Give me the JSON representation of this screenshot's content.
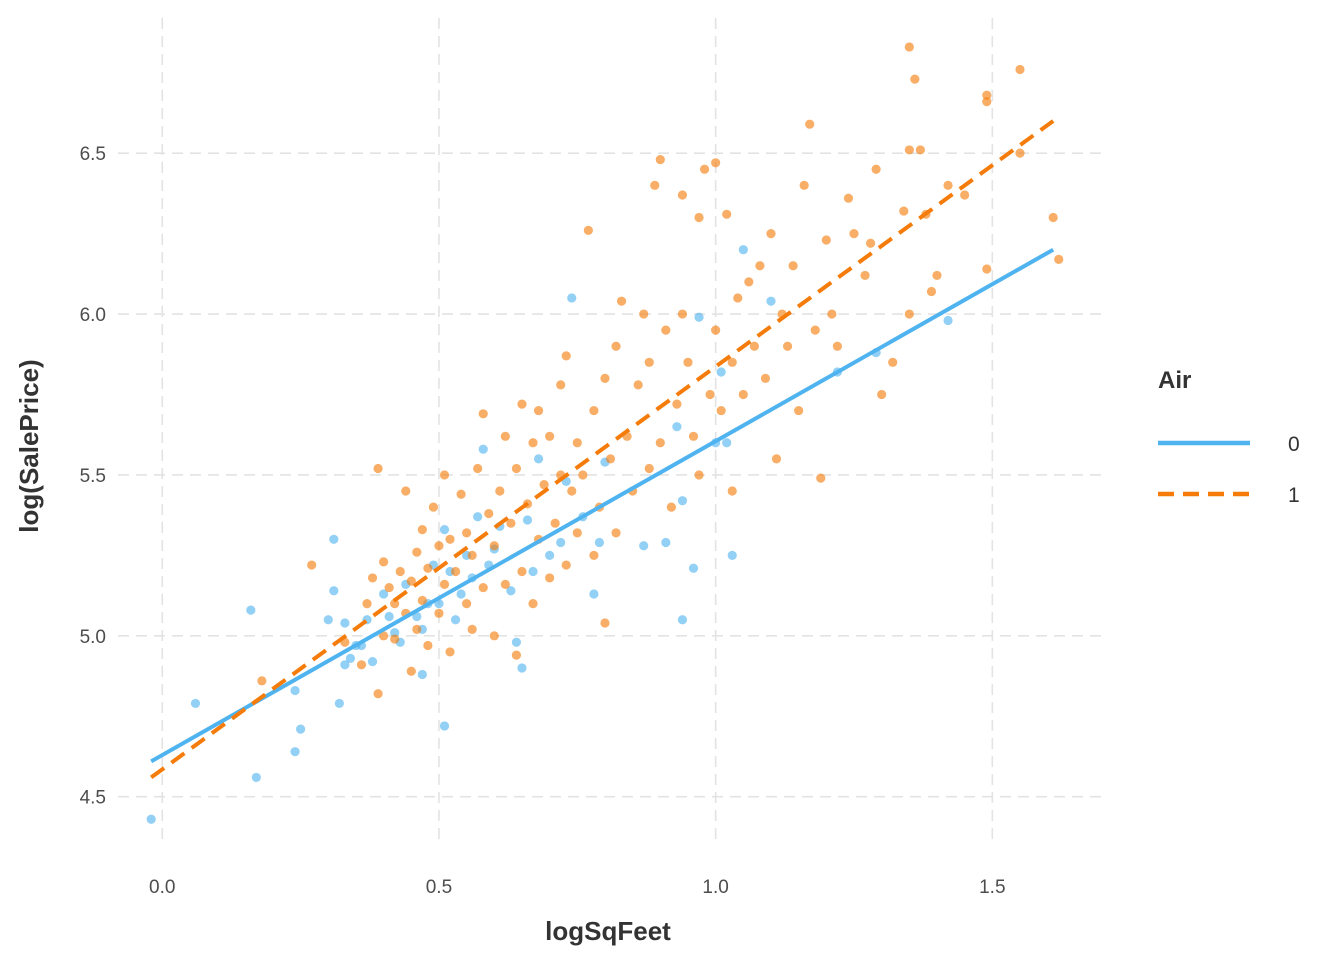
{
  "chart_data": {
    "type": "scatter",
    "title": "",
    "xlabel": "logSqFeet",
    "ylabel": "log(SalePrice)",
    "xlim": [
      -0.08,
      1.7
    ],
    "ylim": [
      4.35,
      6.92
    ],
    "x_ticks": [
      0.0,
      0.5,
      1.0,
      1.5
    ],
    "x_tick_labels": [
      "0.0",
      "0.5",
      "1.0",
      "1.5"
    ],
    "y_ticks": [
      4.5,
      5.0,
      5.5,
      6.0,
      6.5
    ],
    "y_tick_labels": [
      "4.5",
      "5.0",
      "5.5",
      "6.0",
      "6.5"
    ],
    "grid": true,
    "legend": {
      "title": "Air",
      "position": "right",
      "entries": [
        {
          "label": "0",
          "color": "#4fb3f0",
          "line": "solid"
        },
        {
          "label": "1",
          "color": "#f57c0a",
          "line": "dashed"
        }
      ]
    },
    "series": [
      {
        "name": "0",
        "color": "#4fb3f0",
        "line": "solid",
        "fit": {
          "x": [
            -0.02,
            1.61
          ],
          "y": [
            4.61,
            6.2
          ]
        },
        "points": [
          [
            -0.02,
            4.43
          ],
          [
            0.06,
            4.79
          ],
          [
            0.16,
            5.08
          ],
          [
            0.17,
            4.56
          ],
          [
            0.24,
            4.64
          ],
          [
            0.24,
            4.83
          ],
          [
            0.25,
            4.71
          ],
          [
            0.3,
            5.05
          ],
          [
            0.31,
            5.14
          ],
          [
            0.31,
            5.3
          ],
          [
            0.32,
            4.79
          ],
          [
            0.33,
            4.91
          ],
          [
            0.33,
            5.04
          ],
          [
            0.34,
            4.93
          ],
          [
            0.35,
            4.97
          ],
          [
            0.36,
            4.97
          ],
          [
            0.37,
            5.05
          ],
          [
            0.38,
            4.92
          ],
          [
            0.4,
            5.13
          ],
          [
            0.41,
            5.06
          ],
          [
            0.42,
            5.01
          ],
          [
            0.43,
            4.98
          ],
          [
            0.44,
            5.16
          ],
          [
            0.46,
            5.06
          ],
          [
            0.47,
            4.88
          ],
          [
            0.47,
            5.02
          ],
          [
            0.48,
            5.1
          ],
          [
            0.49,
            5.22
          ],
          [
            0.5,
            5.1
          ],
          [
            0.51,
            4.72
          ],
          [
            0.51,
            5.33
          ],
          [
            0.52,
            5.2
          ],
          [
            0.53,
            5.05
          ],
          [
            0.54,
            5.13
          ],
          [
            0.55,
            5.25
          ],
          [
            0.56,
            5.18
          ],
          [
            0.57,
            5.37
          ],
          [
            0.58,
            5.58
          ],
          [
            0.59,
            5.22
          ],
          [
            0.6,
            5.27
          ],
          [
            0.61,
            5.34
          ],
          [
            0.63,
            5.14
          ],
          [
            0.64,
            4.98
          ],
          [
            0.65,
            4.9
          ],
          [
            0.66,
            5.36
          ],
          [
            0.67,
            5.2
          ],
          [
            0.68,
            5.55
          ],
          [
            0.7,
            5.25
          ],
          [
            0.72,
            5.29
          ],
          [
            0.73,
            5.48
          ],
          [
            0.74,
            6.05
          ],
          [
            0.76,
            5.37
          ],
          [
            0.78,
            5.13
          ],
          [
            0.79,
            5.29
          ],
          [
            0.8,
            5.54
          ],
          [
            0.87,
            5.28
          ],
          [
            0.91,
            5.29
          ],
          [
            0.93,
            5.65
          ],
          [
            0.94,
            5.05
          ],
          [
            0.94,
            5.42
          ],
          [
            0.96,
            5.21
          ],
          [
            0.97,
            5.99
          ],
          [
            1.0,
            5.6
          ],
          [
            1.01,
            5.82
          ],
          [
            1.02,
            5.6
          ],
          [
            1.03,
            5.25
          ],
          [
            1.05,
            6.2
          ],
          [
            1.1,
            6.04
          ],
          [
            1.22,
            5.82
          ],
          [
            1.29,
            5.88
          ],
          [
            1.42,
            5.98
          ]
        ]
      },
      {
        "name": "1",
        "color": "#f57c0a",
        "line": "dashed",
        "fit": {
          "x": [
            -0.02,
            1.61
          ],
          "y": [
            4.56,
            6.6
          ]
        },
        "points": [
          [
            0.18,
            4.86
          ],
          [
            0.27,
            5.22
          ],
          [
            0.33,
            4.98
          ],
          [
            0.36,
            4.91
          ],
          [
            0.37,
            5.1
          ],
          [
            0.38,
            5.18
          ],
          [
            0.39,
            4.82
          ],
          [
            0.39,
            5.52
          ],
          [
            0.4,
            5.0
          ],
          [
            0.4,
            5.23
          ],
          [
            0.41,
            5.15
          ],
          [
            0.42,
            4.99
          ],
          [
            0.42,
            5.1
          ],
          [
            0.43,
            5.2
          ],
          [
            0.44,
            5.07
          ],
          [
            0.44,
            5.45
          ],
          [
            0.45,
            4.89
          ],
          [
            0.45,
            5.17
          ],
          [
            0.46,
            5.02
          ],
          [
            0.46,
            5.26
          ],
          [
            0.47,
            5.11
          ],
          [
            0.47,
            5.33
          ],
          [
            0.48,
            4.97
          ],
          [
            0.48,
            5.21
          ],
          [
            0.49,
            5.4
          ],
          [
            0.5,
            5.07
          ],
          [
            0.5,
            5.28
          ],
          [
            0.51,
            5.16
          ],
          [
            0.51,
            5.5
          ],
          [
            0.52,
            4.95
          ],
          [
            0.52,
            5.3
          ],
          [
            0.53,
            5.2
          ],
          [
            0.54,
            5.44
          ],
          [
            0.55,
            5.1
          ],
          [
            0.55,
            5.32
          ],
          [
            0.56,
            5.02
          ],
          [
            0.56,
            5.25
          ],
          [
            0.57,
            5.52
          ],
          [
            0.58,
            5.69
          ],
          [
            0.58,
            5.15
          ],
          [
            0.59,
            5.38
          ],
          [
            0.6,
            5.0
          ],
          [
            0.6,
            5.28
          ],
          [
            0.61,
            5.45
          ],
          [
            0.62,
            5.62
          ],
          [
            0.62,
            5.16
          ],
          [
            0.63,
            5.35
          ],
          [
            0.64,
            4.94
          ],
          [
            0.64,
            5.52
          ],
          [
            0.65,
            5.2
          ],
          [
            0.65,
            5.72
          ],
          [
            0.66,
            5.41
          ],
          [
            0.67,
            5.6
          ],
          [
            0.67,
            5.1
          ],
          [
            0.68,
            5.3
          ],
          [
            0.68,
            5.7
          ],
          [
            0.69,
            5.47
          ],
          [
            0.7,
            5.18
          ],
          [
            0.7,
            5.62
          ],
          [
            0.71,
            5.35
          ],
          [
            0.72,
            5.5
          ],
          [
            0.72,
            5.78
          ],
          [
            0.73,
            5.22
          ],
          [
            0.73,
            5.87
          ],
          [
            0.74,
            5.45
          ],
          [
            0.75,
            5.6
          ],
          [
            0.75,
            5.32
          ],
          [
            0.76,
            5.5
          ],
          [
            0.77,
            6.26
          ],
          [
            0.78,
            5.25
          ],
          [
            0.78,
            5.7
          ],
          [
            0.79,
            5.4
          ],
          [
            0.8,
            5.04
          ],
          [
            0.8,
            5.8
          ],
          [
            0.81,
            5.55
          ],
          [
            0.82,
            5.9
          ],
          [
            0.82,
            5.32
          ],
          [
            0.83,
            6.04
          ],
          [
            0.84,
            5.62
          ],
          [
            0.85,
            5.45
          ],
          [
            0.86,
            5.78
          ],
          [
            0.87,
            6.0
          ],
          [
            0.88,
            5.52
          ],
          [
            0.88,
            5.85
          ],
          [
            0.89,
            6.4
          ],
          [
            0.9,
            5.6
          ],
          [
            0.9,
            6.48
          ],
          [
            0.91,
            5.95
          ],
          [
            0.92,
            5.4
          ],
          [
            0.93,
            5.72
          ],
          [
            0.94,
            6.37
          ],
          [
            0.94,
            6.0
          ],
          [
            0.95,
            5.85
          ],
          [
            0.96,
            5.62
          ],
          [
            0.97,
            6.3
          ],
          [
            0.97,
            5.5
          ],
          [
            0.98,
            6.45
          ],
          [
            0.99,
            5.75
          ],
          [
            1.0,
            6.47
          ],
          [
            1.0,
            5.95
          ],
          [
            1.01,
            5.7
          ],
          [
            1.02,
            6.31
          ],
          [
            1.03,
            5.85
          ],
          [
            1.03,
            5.45
          ],
          [
            1.04,
            6.05
          ],
          [
            1.05,
            5.75
          ],
          [
            1.06,
            6.1
          ],
          [
            1.07,
            5.9
          ],
          [
            1.08,
            6.15
          ],
          [
            1.09,
            5.8
          ],
          [
            1.1,
            6.25
          ],
          [
            1.11,
            5.55
          ],
          [
            1.12,
            6.0
          ],
          [
            1.13,
            5.9
          ],
          [
            1.14,
            6.15
          ],
          [
            1.15,
            5.7
          ],
          [
            1.16,
            6.4
          ],
          [
            1.17,
            6.59
          ],
          [
            1.18,
            5.95
          ],
          [
            1.19,
            5.49
          ],
          [
            1.2,
            6.23
          ],
          [
            1.21,
            6.0
          ],
          [
            1.22,
            5.9
          ],
          [
            1.24,
            6.36
          ],
          [
            1.25,
            6.25
          ],
          [
            1.27,
            6.12
          ],
          [
            1.28,
            6.22
          ],
          [
            1.29,
            6.45
          ],
          [
            1.3,
            5.75
          ],
          [
            1.32,
            5.85
          ],
          [
            1.34,
            6.32
          ],
          [
            1.35,
            6.0
          ],
          [
            1.35,
            6.51
          ],
          [
            1.35,
            6.83
          ],
          [
            1.36,
            6.73
          ],
          [
            1.37,
            6.51
          ],
          [
            1.38,
            6.31
          ],
          [
            1.39,
            6.07
          ],
          [
            1.4,
            6.12
          ],
          [
            1.42,
            6.4
          ],
          [
            1.45,
            6.37
          ],
          [
            1.49,
            6.68
          ],
          [
            1.49,
            6.66
          ],
          [
            1.49,
            6.14
          ],
          [
            1.55,
            6.76
          ],
          [
            1.55,
            6.5
          ],
          [
            1.61,
            6.3
          ],
          [
            1.62,
            6.17
          ]
        ]
      }
    ]
  }
}
